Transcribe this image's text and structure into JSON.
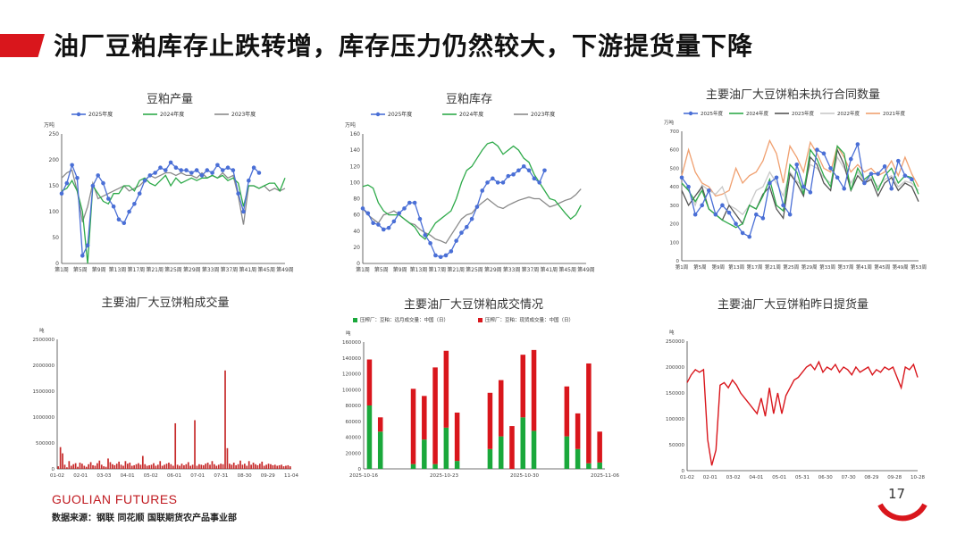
{
  "page": {
    "title": "油厂豆粕库存止跌转增，库存压力仍然较大，下游提货量下降",
    "brand": "GUOLIAN FUTURES",
    "source": "数据来源：钢联  同花顺  国联期货农产品事业部",
    "page_number": "17",
    "accent_color": "#d9161c"
  },
  "chart_data": [
    {
      "type": "line",
      "title": "豆粕产量",
      "unit": "万吨",
      "ylim": [
        0,
        250
      ],
      "yticks": [
        0,
        50,
        100,
        150,
        200,
        250
      ],
      "xticklabels": [
        "第1周",
        "第5周",
        "第9周",
        "第13周",
        "第17周",
        "第21周",
        "第25周",
        "第29周",
        "第33周",
        "第37周",
        "第41周",
        "第45周",
        "第49周"
      ],
      "series": [
        {
          "name": "2025年度",
          "color": "#4a6fd6",
          "marker": true,
          "values": [
            135,
            155,
            190,
            165,
            15,
            35,
            150,
            170,
            155,
            125,
            110,
            85,
            78,
            100,
            115,
            135,
            160,
            170,
            175,
            185,
            180,
            195,
            185,
            180,
            180,
            175,
            180,
            170,
            180,
            175,
            190,
            180,
            185,
            180,
            135,
            100,
            160,
            185,
            175
          ]
        },
        {
          "name": "2024年度",
          "color": "#2eaa4a",
          "values": [
            140,
            145,
            160,
            140,
            100,
            0,
            150,
            135,
            120,
            115,
            135,
            135,
            150,
            150,
            140,
            160,
            165,
            155,
            150,
            160,
            170,
            150,
            165,
            155,
            160,
            165,
            160,
            165,
            165,
            170,
            165,
            170,
            160,
            165,
            155,
            110,
            150,
            150,
            145,
            150,
            155,
            155,
            140,
            165
          ]
        },
        {
          "name": "2023年度",
          "color": "#8a8a8a",
          "values": [
            165,
            175,
            180,
            140,
            80,
            110,
            155,
            125,
            130,
            135,
            140,
            145,
            150,
            140,
            145,
            150,
            160,
            170,
            165,
            170,
            175,
            175,
            170,
            175,
            170,
            170,
            165,
            175,
            165,
            170,
            165,
            175,
            165,
            170,
            130,
            75,
            150,
            150,
            145,
            150,
            140,
            145,
            140,
            145
          ]
        }
      ]
    },
    {
      "type": "line",
      "title": "豆粕库存",
      "unit": "万吨",
      "ylim": [
        0,
        160
      ],
      "yticks": [
        0,
        20,
        40,
        60,
        80,
        100,
        120,
        140,
        160
      ],
      "xticklabels": [
        "第1周",
        "第5周",
        "第9周",
        "第13周",
        "第17周",
        "第21周",
        "第25周",
        "第29周",
        "第33周",
        "第37周",
        "第41周",
        "第45周",
        "第49周"
      ],
      "series": [
        {
          "name": "2025年度",
          "color": "#4a6fd6",
          "marker": true,
          "values": [
            68,
            62,
            50,
            48,
            42,
            44,
            52,
            62,
            68,
            75,
            75,
            55,
            35,
            25,
            10,
            8,
            10,
            15,
            28,
            38,
            45,
            55,
            70,
            90,
            100,
            105,
            100,
            100,
            108,
            110,
            115,
            120,
            115,
            105,
            100,
            115
          ]
        },
        {
          "name": "2024年度",
          "color": "#2eaa4a",
          "values": [
            95,
            97,
            93,
            75,
            65,
            60,
            60,
            60,
            55,
            50,
            45,
            35,
            30,
            40,
            50,
            55,
            60,
            65,
            80,
            100,
            115,
            120,
            130,
            140,
            148,
            150,
            145,
            135,
            140,
            145,
            140,
            130,
            125,
            110,
            100,
            90,
            80,
            78,
            70,
            62,
            55,
            60,
            72
          ]
        },
        {
          "name": "2023年度",
          "color": "#8a8a8a",
          "values": [
            68,
            60,
            55,
            50,
            60,
            62,
            65,
            60,
            55,
            50,
            48,
            42,
            38,
            35,
            30,
            28,
            25,
            35,
            45,
            55,
            60,
            62,
            70,
            75,
            80,
            75,
            70,
            68,
            72,
            75,
            78,
            80,
            82,
            80,
            80,
            75,
            70,
            72,
            75,
            78,
            80,
            85,
            92
          ]
        }
      ]
    },
    {
      "type": "line",
      "title": "主要油厂大豆饼粕未执行合同数量",
      "unit": "万吨",
      "ylim": [
        0,
        700
      ],
      "yticks": [
        0,
        100,
        200,
        300,
        400,
        500,
        600,
        700
      ],
      "xticklabels": [
        "第1周",
        "第5周",
        "第9周",
        "第13周",
        "第17周",
        "第21周",
        "第25周",
        "第29周",
        "第33周",
        "第37周",
        "第41周",
        "第45周",
        "第49周",
        "第53周"
      ],
      "series": [
        {
          "name": "2025年度",
          "color": "#4a6fd6",
          "marker": true,
          "values": [
            450,
            400,
            250,
            300,
            380,
            250,
            300,
            260,
            200,
            150,
            130,
            250,
            230,
            420,
            450,
            300,
            250,
            520,
            400,
            370,
            600,
            580,
            500,
            450,
            390,
            550,
            630,
            420,
            470,
            470,
            510,
            390,
            540,
            460,
            440
          ]
        },
        {
          "name": "2024年度",
          "color": "#2eaa4a",
          "values": [
            420,
            380,
            320,
            380,
            280,
            250,
            220,
            200,
            180,
            200,
            300,
            280,
            350,
            440,
            300,
            270,
            520,
            480,
            360,
            600,
            550,
            460,
            400,
            620,
            580,
            380,
            500,
            440,
            470,
            380,
            460,
            500,
            420,
            460,
            450,
            360
          ]
        },
        {
          "name": "2023年度",
          "color": "#555555",
          "values": [
            380,
            300,
            350,
            400,
            280,
            250,
            220,
            300,
            250,
            200,
            300,
            280,
            360,
            400,
            280,
            230,
            470,
            420,
            350,
            560,
            520,
            420,
            380,
            600,
            520,
            380,
            460,
            420,
            440,
            350,
            420,
            450,
            380,
            420,
            400,
            320
          ]
        },
        {
          "name": "2022年度",
          "color": "#c8c8c8",
          "values": [
            420,
            380,
            300,
            410,
            380,
            360,
            400,
            300,
            280,
            250,
            300,
            380,
            400,
            480,
            420,
            350,
            480,
            430,
            400,
            520,
            500,
            450,
            420,
            560,
            500,
            420,
            480,
            430,
            450,
            400,
            440,
            460,
            400,
            430,
            420,
            380
          ]
        },
        {
          "name": "2021年度",
          "color": "#f0a070",
          "values": [
            460,
            600,
            480,
            420,
            400,
            350,
            360,
            380,
            500,
            420,
            460,
            480,
            540,
            650,
            580,
            420,
            620,
            560,
            480,
            640,
            580,
            500,
            480,
            620,
            560,
            480,
            520,
            480,
            500,
            460,
            480,
            540,
            460,
            560,
            470,
            400
          ]
        }
      ]
    },
    {
      "type": "bar",
      "title": "主要油厂大豆饼粕成交量",
      "unit": "吨",
      "ylim": [
        0,
        2500000
      ],
      "yticks": [
        0,
        500000,
        1000000,
        1500000,
        2000000,
        2500000
      ],
      "xticklabels": [
        "01-02",
        "02-01",
        "03-03",
        "04-01",
        "05-02",
        "06-01",
        "07-01",
        "07-31",
        "08-30",
        "09-29",
        "11-04"
      ],
      "series": [
        {
          "name": "成交量",
          "color": "#c62a2a",
          "values": [
            50000,
            420000,
            300000,
            80000,
            30000,
            150000,
            60000,
            90000,
            110000,
            40000,
            120000,
            100000,
            60000,
            40000,
            90000,
            130000,
            70000,
            60000,
            110000,
            160000,
            80000,
            50000,
            40000,
            200000,
            130000,
            90000,
            70000,
            100000,
            140000,
            80000,
            60000,
            150000,
            100000,
            120000,
            60000,
            70000,
            90000,
            110000,
            80000,
            250000,
            90000,
            60000,
            70000,
            80000,
            110000,
            60000,
            80000,
            150000,
            60000,
            80000,
            100000,
            120000,
            90000,
            60000,
            880000,
            80000,
            60000,
            100000,
            70000,
            90000,
            130000,
            60000,
            80000,
            940000,
            60000,
            90000,
            80000,
            70000,
            100000,
            120000,
            80000,
            150000,
            90000,
            60000,
            80000,
            100000,
            90000,
            1900000,
            400000,
            100000,
            80000,
            120000,
            70000,
            90000,
            160000,
            80000,
            100000,
            60000,
            150000,
            80000,
            120000,
            90000,
            70000,
            100000,
            140000,
            60000,
            80000,
            100000,
            90000,
            70000,
            80000,
            60000,
            70000,
            80000,
            50000,
            60000,
            70000,
            50000
          ]
        }
      ]
    },
    {
      "type": "bar",
      "title": "主要油厂大豆饼粕成交情况",
      "unit": "吨",
      "ylim": [
        0,
        160000
      ],
      "yticks": [
        0,
        20000,
        40000,
        60000,
        80000,
        100000,
        120000,
        140000,
        160000
      ],
      "xticklabels": [
        "2025-10-16",
        "2025-10-23",
        "2025-10-30",
        "2025-11-06"
      ],
      "legend": [
        "压榨厂：豆粕：远月成交量：中国（日）",
        "压榨厂：豆粕：现货成交量：中国（日）"
      ],
      "series": [
        {
          "name": "压榨厂：豆粕：远月成交量：中国（日）",
          "color": "#1aa83b",
          "values": [
            80000,
            47000,
            0,
            0,
            6000,
            37000,
            6000,
            52000,
            10000,
            0,
            0,
            25000,
            41000,
            0,
            65000,
            48000,
            0,
            0,
            41000,
            25000,
            7000,
            8000
          ]
        },
        {
          "name": "压榨厂：豆粕：现货成交量：中国（日）",
          "color": "#d9161c",
          "values": [
            58000,
            18000,
            0,
            0,
            95000,
            55000,
            122000,
            97000,
            61000,
            0,
            0,
            71000,
            71000,
            54000,
            79000,
            102000,
            0,
            0,
            63000,
            45000,
            126000,
            39000
          ]
        }
      ]
    },
    {
      "type": "line",
      "title": "主要油厂大豆饼粕昨日提货量",
      "unit": "吨",
      "ylim": [
        0,
        250000
      ],
      "yticks": [
        0,
        50000,
        100000,
        150000,
        200000,
        250000
      ],
      "xticklabels": [
        "01-02",
        "02-01",
        "03-02",
        "04-01",
        "05-01",
        "05-31",
        "06-30",
        "07-30",
        "08-29",
        "09-28",
        "10-28"
      ],
      "series": [
        {
          "name": "提货量",
          "color": "#d9161c",
          "values": [
            170000,
            185000,
            195000,
            190000,
            195000,
            60000,
            10000,
            40000,
            165000,
            170000,
            160000,
            175000,
            165000,
            150000,
            140000,
            130000,
            120000,
            110000,
            140000,
            105000,
            160000,
            110000,
            150000,
            110000,
            145000,
            160000,
            175000,
            180000,
            190000,
            200000,
            205000,
            195000,
            210000,
            190000,
            200000,
            195000,
            205000,
            190000,
            200000,
            195000,
            185000,
            200000,
            190000,
            195000,
            200000,
            185000,
            195000,
            190000,
            200000,
            195000,
            200000,
            180000,
            160000,
            200000,
            195000,
            205000,
            180000
          ]
        }
      ]
    }
  ]
}
